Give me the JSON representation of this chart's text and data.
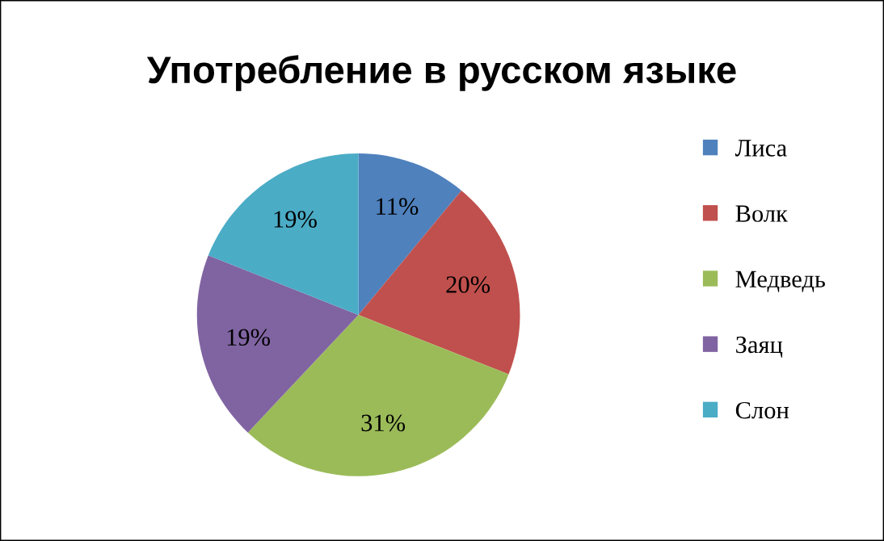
{
  "chart_data": {
    "type": "pie",
    "title": "Употребление в русском языке",
    "categories": [
      "Лиса",
      "Волк",
      "Медведь",
      "Заяц",
      "Слон"
    ],
    "values": [
      11,
      20,
      31,
      19,
      19
    ],
    "value_labels": [
      "11%",
      "20%",
      "31%",
      "19%",
      "19%"
    ],
    "colors": [
      "#4f81bd",
      "#c0504d",
      "#9bbb59",
      "#8064a2",
      "#4bacc6"
    ],
    "legend": "right"
  }
}
